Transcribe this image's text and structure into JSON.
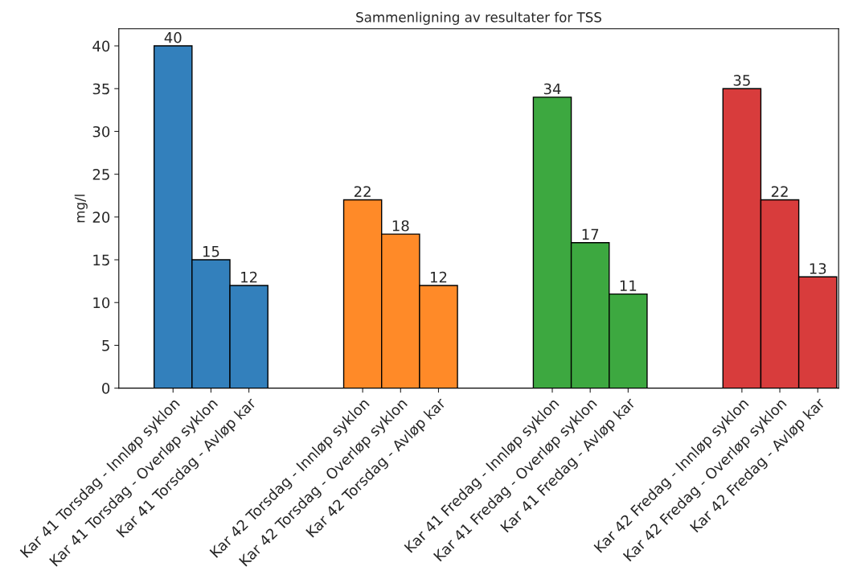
{
  "chart_data": {
    "type": "bar",
    "title": "Sammenligning av resultater for TSS",
    "ylabel": "mg/l",
    "categories": [
      "Kar 41 Torsdag - Innløp syklon",
      "Kar 41 Torsdag - Overløp syklon",
      "Kar 41 Torsdag - Avløp kar",
      null,
      null,
      "Kar 42 Torsdag - Innløp syklon",
      "Kar 42 Torsdag - Overløp syklon",
      "Kar 42 Torsdag - Avløp kar",
      null,
      null,
      "Kar 41 Fredag - Innløp syklon",
      "Kar 41 Fredag - Overløp syklon",
      "Kar 41 Fredag - Avløp kar",
      null,
      null,
      "Kar 42 Fredag - Innløp syklon",
      "Kar 42 Fredag - Overløp syklon",
      "Kar 42 Fredag - Avløp kar"
    ],
    "values": [
      40,
      15,
      12,
      null,
      null,
      22,
      18,
      12,
      null,
      null,
      34,
      17,
      11,
      null,
      null,
      35,
      22,
      13
    ],
    "colors": [
      "#3380bc",
      "#3380bc",
      "#3380bc",
      null,
      null,
      "#ff8a28",
      "#ff8a28",
      "#ff8a28",
      null,
      null,
      "#3da840",
      "#3da840",
      "#3da840",
      null,
      null,
      "#d83c3c",
      "#d83c3c",
      "#d83c3c"
    ],
    "ylim": [
      0,
      42
    ],
    "yticks": [
      0,
      5,
      10,
      15,
      20,
      25,
      30,
      35,
      40
    ],
    "data_labels": true,
    "grid": false
  }
}
